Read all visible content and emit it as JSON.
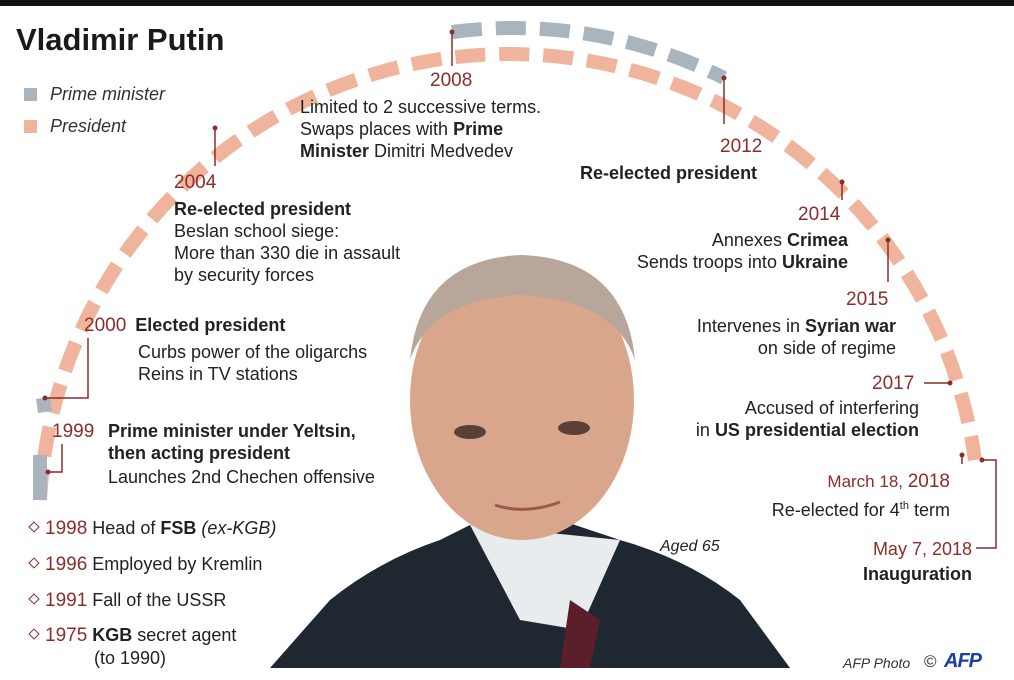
{
  "title": "Vladimir Putin",
  "legend": [
    {
      "label": "Prime minister",
      "color": "#a9b4bd"
    },
    {
      "label": "President",
      "color": "#f0b49c"
    }
  ],
  "events": {
    "e1999": {
      "year": "1999",
      "line1": "Prime minister under Yeltsin,",
      "line2": "then acting president",
      "line3": "Launches 2nd Chechen offensive"
    },
    "e2000": {
      "year": "2000",
      "headline": "Elected president",
      "line1": "Curbs power of the oligarchs",
      "line2": "Reins in TV stations"
    },
    "e2004": {
      "year": "2004",
      "headline": "Re-elected president",
      "line1": "Beslan school siege:",
      "line2": "More than 330 die in assault",
      "line3": "by security forces"
    },
    "e2008": {
      "year": "2008",
      "line1": "Limited to 2 successive terms.",
      "line2a": "Swaps places with ",
      "line2b": "Prime",
      "line3a": "Minister",
      "line3b": " Dimitri Medvedev"
    },
    "e2012": {
      "year": "2012",
      "headline": "Re-elected president"
    },
    "e2014": {
      "year": "2014",
      "line1a": "Annexes ",
      "line1b": "Crimea",
      "line2a": "Sends troops into ",
      "line2b": "Ukraine"
    },
    "e2015": {
      "year": "2015",
      "line1a": "Intervenes in ",
      "line1b": "Syrian war",
      "line2": "on side of regime"
    },
    "e2017": {
      "year": "2017",
      "line1": "Accused of interfering",
      "line2a": "in ",
      "line2b": "US presidential election"
    },
    "e2018a": {
      "date_prefix": "March 18, ",
      "year": "2018",
      "line1": "Re-elected for 4",
      "sup": "th",
      "line1end": " term"
    },
    "e2018b": {
      "date": "May 7, 2018",
      "headline": "Inauguration"
    }
  },
  "early": [
    {
      "year": "1998",
      "text_a": "Head of ",
      "text_b": "FSB",
      "text_c": " (ex-KGB)"
    },
    {
      "year": "1996",
      "text_a": "Employed by Kremlin"
    },
    {
      "year": "1991",
      "text_a": "Fall of the USSR"
    },
    {
      "year": "1975",
      "text_b": "KGB",
      "text_a": " secret agent",
      "line2": "(to 1990)"
    }
  ],
  "age_label": "Aged 65",
  "credit": "AFP Photo",
  "copyright_mark": "©",
  "logo": "AFP"
}
